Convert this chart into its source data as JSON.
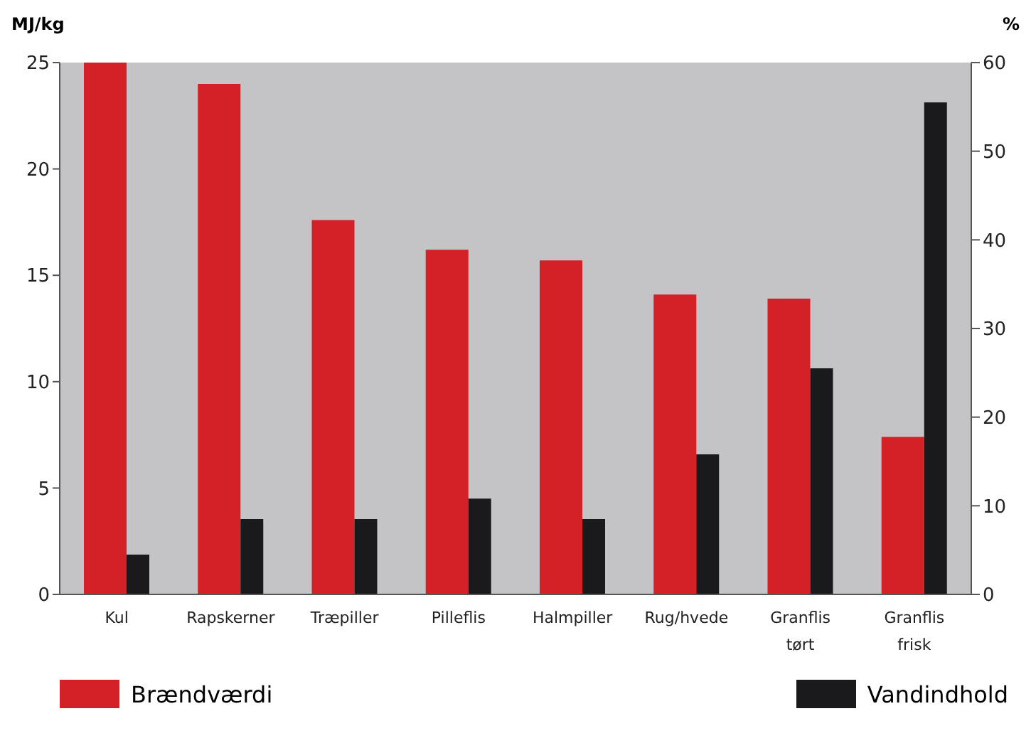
{
  "chart_data": {
    "type": "bar",
    "ylabel": "MJ/kg",
    "y2label": "%",
    "categories": [
      "Kul",
      "Rapskerner",
      "Træpiller",
      "Pilleflis",
      "Halmpiller",
      "Rug/hvede",
      "Granflis tørt",
      "Granflis frisk"
    ],
    "series": [
      {
        "name": "Brændværdi",
        "color": "#d42027",
        "values": [
          25,
          24,
          17.6,
          16.2,
          15.7,
          14.1,
          13.9,
          7.4
        ]
      },
      {
        "name": "Vandindhold",
        "color": "#1a1a1c",
        "axis": "y2",
        "values": [
          4.5,
          8.5,
          8.5,
          10.8,
          8.5,
          15.8,
          25.5,
          55.5
        ]
      }
    ],
    "ylim": [
      0,
      25
    ],
    "yticks": [
      0,
      5,
      10,
      15,
      20,
      25
    ],
    "y2lim": [
      0,
      60
    ],
    "y2ticks": [
      0,
      10,
      20,
      30,
      40,
      50,
      60
    ],
    "grid": false,
    "legend": "bottom"
  }
}
